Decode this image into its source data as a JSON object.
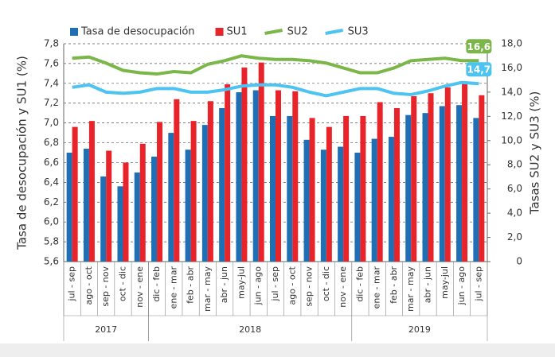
{
  "chart_data": {
    "type": "bar_line",
    "categories": [
      "jul - sep",
      "ago - oct",
      "sep - nov",
      "oct - dic",
      "nov - ene",
      "dic - feb",
      "ene - mar",
      "feb - abr",
      "mar - may",
      "abr - jun",
      "may-jul",
      "jun - ago",
      "jul - sep",
      "ago - oct",
      "sep - nov",
      "oct - dic",
      "nov - ene",
      "dic - feb",
      "ene - mar",
      "feb - abr",
      "mar - may",
      "abr - jun",
      "may-jul",
      "jun - ago",
      "jul - sep"
    ],
    "groups": [
      {
        "label": "2017",
        "count": 5
      },
      {
        "label": "2018",
        "count": 12
      },
      {
        "label": "2019",
        "count": 8
      }
    ],
    "series": [
      {
        "name": "Tasa de desocupación",
        "kind": "bar",
        "color": "#1f6fb5",
        "values": [
          6.7,
          6.74,
          6.46,
          6.36,
          6.5,
          6.66,
          6.9,
          6.73,
          6.98,
          7.15,
          7.31,
          7.33,
          7.07,
          7.07,
          6.83,
          6.73,
          6.76,
          6.7,
          6.84,
          6.86,
          7.08,
          7.1,
          7.17,
          7.18,
          7.05
        ]
      },
      {
        "name": "SU1",
        "kind": "bar",
        "color": "#e8232a",
        "values": [
          6.96,
          7.02,
          6.72,
          6.6,
          6.79,
          7.01,
          7.24,
          7.02,
          7.22,
          7.39,
          7.56,
          7.61,
          7.33,
          7.32,
          7.05,
          6.96,
          7.07,
          7.07,
          7.21,
          7.15,
          7.27,
          7.3,
          7.36,
          7.4,
          7.28
        ]
      },
      {
        "name": "SU2",
        "kind": "line",
        "axis": "y2",
        "color": "#7ab648",
        "values": [
          16.8,
          16.9,
          16.4,
          15.8,
          15.6,
          15.5,
          15.7,
          15.6,
          16.3,
          16.6,
          17.0,
          16.8,
          16.7,
          16.7,
          16.6,
          16.4,
          16.0,
          15.6,
          15.6,
          16.0,
          16.6,
          16.7,
          16.8,
          16.6,
          16.6
        ],
        "value_labels": [
          null,
          null,
          null,
          null,
          null,
          null,
          null,
          null,
          null,
          null,
          null,
          null,
          null,
          null,
          null,
          null,
          null,
          null,
          null,
          null,
          null,
          null,
          null,
          null,
          "16,6"
        ]
      },
      {
        "name": "SU3",
        "kind": "line",
        "axis": "y2",
        "color": "#4cc3f0",
        "values": [
          14.4,
          14.6,
          14.0,
          13.9,
          14.0,
          14.3,
          14.3,
          14.0,
          14.0,
          14.2,
          14.5,
          14.6,
          14.6,
          14.4,
          14.0,
          13.7,
          14.0,
          14.3,
          14.3,
          13.9,
          13.8,
          14.1,
          14.5,
          14.8,
          14.7
        ],
        "value_labels": [
          null,
          null,
          null,
          null,
          null,
          null,
          null,
          null,
          null,
          null,
          null,
          null,
          null,
          null,
          null,
          null,
          null,
          null,
          null,
          null,
          null,
          null,
          null,
          null,
          "14,7"
        ]
      }
    ],
    "y_label": "Tasa de desocupación y SU1 (%)",
    "y2_label": "Tasas SU2 y SU3 (%)",
    "ylim": [
      5.6,
      7.8
    ],
    "yticks": [
      {
        "value": 5.6,
        "label": "5,6"
      },
      {
        "value": 5.8,
        "label": "5,8"
      },
      {
        "value": 6.0,
        "label": "6,0"
      },
      {
        "value": 6.2,
        "label": "6,2"
      },
      {
        "value": 6.4,
        "label": "6,4"
      },
      {
        "value": 6.6,
        "label": "6,6"
      },
      {
        "value": 6.8,
        "label": "6,8"
      },
      {
        "value": 7.0,
        "label": "7,0"
      },
      {
        "value": 7.2,
        "label": "7,2"
      },
      {
        "value": 7.4,
        "label": "7,4"
      },
      {
        "value": 7.6,
        "label": "7,6"
      },
      {
        "value": 7.8,
        "label": "7,8"
      }
    ],
    "y2lim": [
      0,
      18
    ],
    "y2ticks": [
      0,
      {
        "value": 2,
        "label": "2,0"
      },
      {
        "value": 4,
        "label": "4,0"
      },
      {
        "value": 6,
        "label": "6,0"
      },
      {
        "value": 8,
        "label": "8,0"
      },
      {
        "value": 10,
        "label": "10,0"
      },
      {
        "value": 12,
        "label": "12,0"
      },
      {
        "value": 14,
        "label": "14,0"
      },
      {
        "value": 16,
        "label": "16,0"
      },
      {
        "value": 18,
        "label": "18,0"
      }
    ],
    "grid": true,
    "legend": "top"
  }
}
